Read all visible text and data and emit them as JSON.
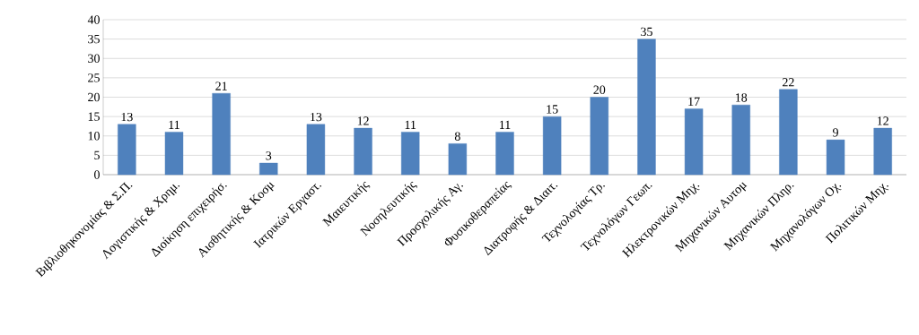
{
  "chart_data": {
    "type": "bar",
    "categories": [
      "Βιβλιοθηκονομίας & Σ.Π.",
      "Λογιστικής & Χρημ.",
      "Διοίκηση επιχειρήσ.",
      "Αισθητικής & Κοσμ",
      "Ιατρικών Εργαστ.",
      "Μαιευτικής",
      "Νοσηλευτικής",
      "Προσχολικής Αγ.",
      "Φυσικοθεραπείας",
      "Διατροφής & Διαιτ.",
      "Τεχνολογίας Τρ.",
      "Τεχνολόγων Γεωπ.",
      "Ηλεκτρονικών Μηχ.",
      "Μηχανικών Αυτομ",
      "Μηχανικών Πληρ.",
      "Μηχανολόγων Οχ.",
      "Πολιτικών Μηχ."
    ],
    "values": [
      13,
      11,
      21,
      3,
      13,
      12,
      11,
      8,
      11,
      15,
      20,
      35,
      17,
      18,
      22,
      9,
      12
    ],
    "color": "#4f81bd",
    "data_labels": true,
    "ylim": [
      0,
      40
    ],
    "yticks": [
      0,
      5,
      10,
      15,
      20,
      25,
      30,
      35,
      40
    ],
    "grid": "y"
  }
}
